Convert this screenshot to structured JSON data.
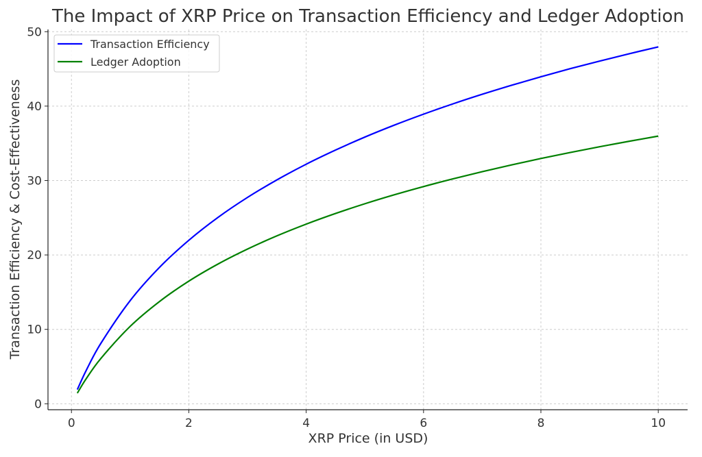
{
  "chart_data": {
    "type": "line",
    "title": "The Impact of XRP Price on Transaction Efficiency and Ledger Adoption",
    "xlabel": "XRP Price (in USD)",
    "ylabel": "Transaction Efficiency & Cost-Effectiveness",
    "xlim": [
      -0.4,
      10.5
    ],
    "ylim": [
      -0.8,
      50.3
    ],
    "xticks": [
      0,
      2,
      4,
      6,
      8,
      10
    ],
    "yticks": [
      0,
      10,
      20,
      30,
      40,
      50
    ],
    "grid": true,
    "legend": "top-left",
    "x": [
      0.1,
      0.25,
      0.5,
      1,
      1.5,
      2,
      2.5,
      3,
      3.5,
      4,
      4.5,
      5,
      5.5,
      6,
      6.5,
      7,
      7.5,
      8,
      8.5,
      9,
      9.5,
      10
    ],
    "series": [
      {
        "name": "Transaction Efficiency",
        "color": "#0000ff",
        "values": [
          1.91,
          4.46,
          8.11,
          13.86,
          18.33,
          21.97,
          25.06,
          27.73,
          30.08,
          32.19,
          34.09,
          35.84,
          37.44,
          38.92,
          40.3,
          41.59,
          42.8,
          43.94,
          45.03,
          46.05,
          47.03,
          47.96
        ]
      },
      {
        "name": "Ledger Adoption",
        "color": "#008000",
        "values": [
          1.43,
          3.35,
          6.08,
          10.4,
          13.74,
          16.48,
          18.79,
          20.79,
          22.56,
          24.14,
          25.57,
          26.88,
          28.08,
          29.19,
          30.22,
          31.19,
          32.1,
          32.96,
          33.77,
          34.54,
          35.27,
          35.97
        ]
      }
    ]
  }
}
